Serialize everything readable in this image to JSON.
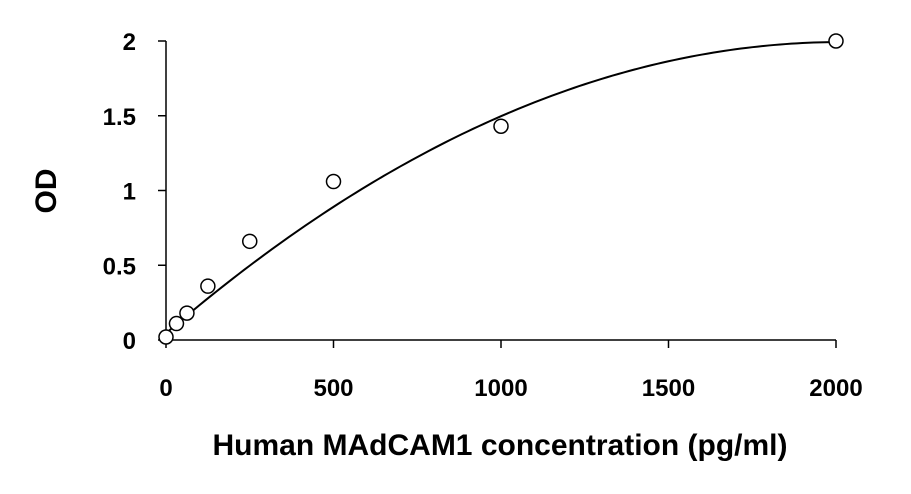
{
  "chart_data": {
    "type": "scatter",
    "title": "",
    "xlabel": "Human MAdCAM1 concentration (pg/ml)",
    "ylabel": "OD",
    "xlim": [
      0,
      2000
    ],
    "ylim": [
      0,
      2
    ],
    "xticks": [
      0,
      500,
      1000,
      1500,
      2000
    ],
    "yticks": [
      0,
      0.5,
      1,
      1.5,
      2
    ],
    "xtick_labels": [
      "0",
      "500",
      "1000",
      "1500",
      "2000"
    ],
    "ytick_labels": [
      "0",
      "0.5",
      "1",
      "1.5",
      "2"
    ],
    "grid": false,
    "legend": "none",
    "series": [
      {
        "x": [
          0,
          31.25,
          62.5,
          125,
          250,
          500,
          1000,
          2000
        ],
        "y": [
          0.02,
          0.11,
          0.18,
          0.36,
          0.66,
          1.06,
          1.43,
          2.0
        ],
        "marker": "open-circle"
      }
    ],
    "fit": {
      "type": "polynomial-2",
      "coefficients": [
        0.045,
        0.00193,
        -4.78e-07
      ]
    },
    "colors": {
      "marker_stroke": "#000000",
      "marker_fill": "#ffffff",
      "axis": "#000000",
      "curve": "#000000"
    }
  }
}
